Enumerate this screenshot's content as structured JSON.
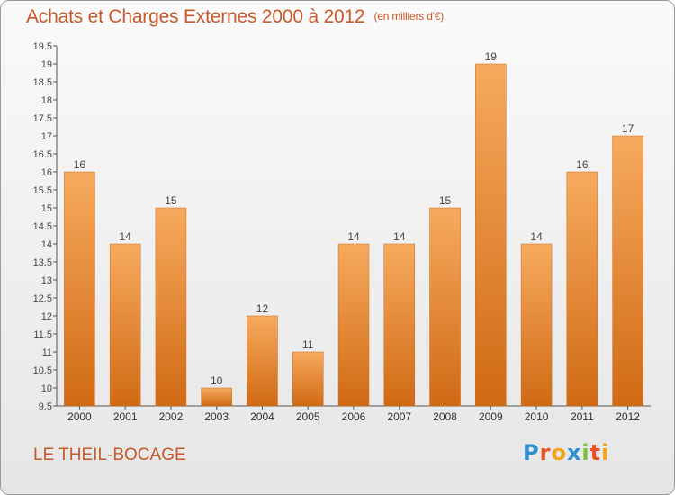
{
  "title": "Achats et Charges Externes 2000 à 2012",
  "subtitle": "(en milliers d'€)",
  "location": "LE THEIL-BOCAGE",
  "logo": {
    "text": "Proxiti",
    "colors": [
      "#2e8fd0",
      "#e8522a",
      "#f2a51c",
      "#2e8fd0",
      "#7cc242",
      "#e8522a",
      "#f2a51c"
    ]
  },
  "chart_data": {
    "type": "bar",
    "categories": [
      "2000",
      "2001",
      "2002",
      "2003",
      "2004",
      "2005",
      "2006",
      "2007",
      "2008",
      "2009",
      "2010",
      "2011",
      "2012"
    ],
    "values": [
      16,
      14,
      15,
      10,
      12,
      11,
      14,
      14,
      15,
      19,
      14,
      16,
      17
    ],
    "ylim": [
      9.5,
      19.5
    ],
    "yticks": [
      "9.5",
      "10",
      "10.5",
      "11",
      "11.5",
      "12",
      "12.5",
      "13",
      "13.5",
      "14",
      "14.5",
      "15",
      "15.5",
      "16",
      "16.5",
      "17",
      "17.5",
      "18",
      "18.5",
      "19",
      "19.5"
    ],
    "bar_color_top": "#f7aa5e",
    "bar_color_bottom": "#d06a14",
    "grid": false
  }
}
